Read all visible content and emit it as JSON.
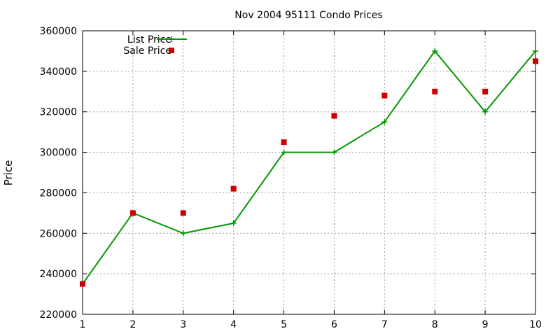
{
  "chart_data": {
    "type": "line",
    "title": "Nov 2004 95111 Condo Prices",
    "xlabel": "",
    "ylabel": "Price",
    "x": [
      1,
      2,
      3,
      4,
      5,
      6,
      7,
      8,
      9,
      10
    ],
    "xlim": [
      1,
      10
    ],
    "ylim": [
      220000,
      360000
    ],
    "xticks": [
      1,
      2,
      3,
      4,
      5,
      6,
      7,
      8,
      9,
      10
    ],
    "yticks": [
      220000,
      240000,
      260000,
      280000,
      300000,
      320000,
      340000,
      360000
    ],
    "grid": true,
    "legend_position": "top-left",
    "series": [
      {
        "name": "List Price",
        "style": "line-points",
        "color": "#009900",
        "marker": "plus",
        "values": [
          235000,
          270000,
          260000,
          265000,
          300000,
          300000,
          315000,
          350000,
          320000,
          350000
        ]
      },
      {
        "name": "Sale Price",
        "style": "points",
        "color": "#cc0000",
        "marker": "square",
        "values": [
          235000,
          270000,
          270000,
          282000,
          305000,
          318000,
          328000,
          330000,
          330000,
          345000
        ]
      }
    ]
  }
}
